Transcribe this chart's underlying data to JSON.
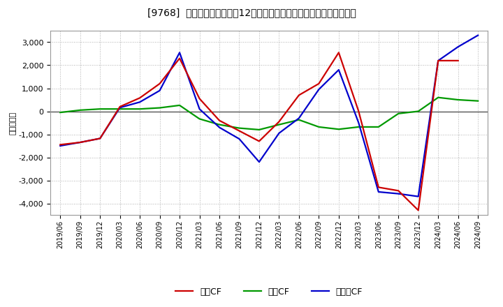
{
  "title": "[9768]  キャッシュフローの12か月移動合計の対前年同期増減額の推移",
  "ylabel": "（百万円）",
  "background_color": "#ffffff",
  "plot_bg_color": "#ffffff",
  "grid_color": "#b0b0b0",
  "ylim": [
    -4500,
    3500
  ],
  "yticks": [
    -4000,
    -3000,
    -2000,
    -1000,
    0,
    1000,
    2000,
    3000
  ],
  "x_labels": [
    "2019/06",
    "2019/09",
    "2019/12",
    "2020/03",
    "2020/06",
    "2020/09",
    "2020/12",
    "2021/03",
    "2021/06",
    "2021/09",
    "2021/12",
    "2022/03",
    "2022/06",
    "2022/09",
    "2022/12",
    "2023/03",
    "2023/06",
    "2023/09",
    "2023/12",
    "2024/03",
    "2024/06",
    "2024/09"
  ],
  "eigyo_cf": [
    -1450,
    -1350,
    -1180,
    200,
    580,
    1200,
    2300,
    550,
    -400,
    -850,
    -1300,
    -450,
    700,
    1200,
    2550,
    0,
    -3300,
    -3450,
    -4300,
    2200,
    2200,
    null
  ],
  "toshi_cf": [
    -50,
    50,
    100,
    100,
    100,
    150,
    260,
    -330,
    -580,
    -730,
    -800,
    -580,
    -370,
    -680,
    -780,
    -680,
    -680,
    -100,
    0,
    600,
    500,
    450
  ],
  "free_cf": [
    -1500,
    -1350,
    -1180,
    160,
    400,
    900,
    2550,
    100,
    -700,
    -1200,
    -2200,
    -950,
    -300,
    950,
    1800,
    -500,
    -3500,
    -3580,
    -3700,
    2200,
    2800,
    3300
  ],
  "eigyo_color": "#cc0000",
  "toshi_color": "#009900",
  "free_color": "#0000cc",
  "legend_labels": [
    "営業CF",
    "投資CF",
    "フリーCF"
  ],
  "linewidth": 1.6
}
